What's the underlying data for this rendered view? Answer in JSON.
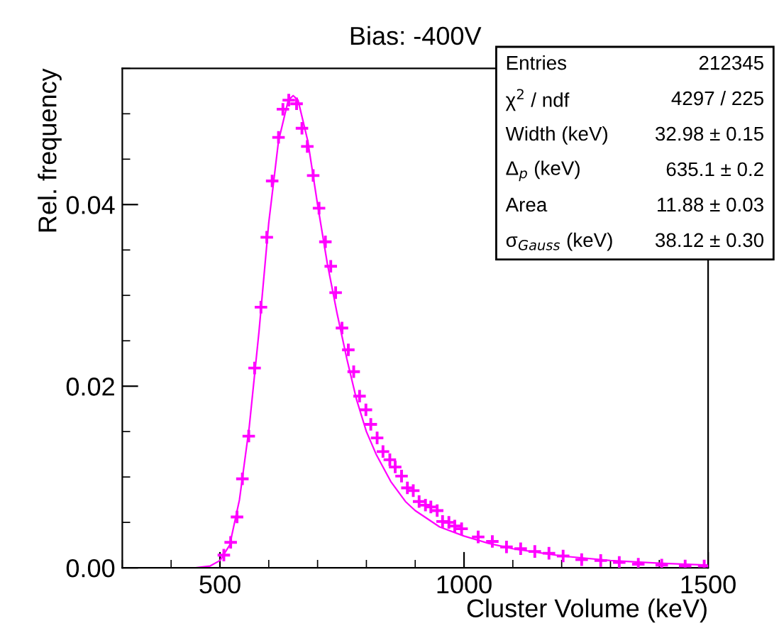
{
  "chart_data": {
    "type": "scatter",
    "title": "Bias: -400V",
    "xlabel": "Cluster Volume (keV)",
    "ylabel": "Rel. frequency",
    "xlim": [
      300,
      1500
    ],
    "xticks": [
      500,
      1000,
      1500
    ],
    "ylim": [
      0,
      0.055
    ],
    "yticks": [
      {
        "value": 0,
        "label": "0.00"
      },
      {
        "value": 0.02,
        "label": "0.02"
      },
      {
        "value": 0.04,
        "label": "0.04"
      }
    ],
    "grid": false,
    "annotations": [
      "Entries",
      "212345",
      "χ$^{2}$ / ndf",
      "4297 / 225",
      "Width (keV)",
      "32.98 ± 0.15",
      "Δ$_{p}$ (keV)",
      "635.1 ± 0.2",
      "Area",
      "11.88 ± 0.03",
      "σ$_{Gauss}$ (keV)",
      "38.12 ± 0.30"
    ],
    "series": [
      {
        "color": "#ff00ff",
        "marker": "cross",
        "x": [
          508,
          522,
          535,
          546,
          559,
          571,
          584,
          596,
          607,
          620,
          629,
          641,
          657,
          668,
          679,
          691,
          703,
          716,
          727,
          737,
          750,
          763,
          774,
          786,
          799,
          809,
          822,
          834,
          848,
          859,
          872,
          884,
          896,
          908,
          921,
          932,
          945,
          956,
          969,
          981,
          995,
          1029,
          1058,
          1087,
          1116,
          1145,
          1174,
          1203,
          1241,
          1280,
          1318,
          1357,
          1405,
          1453,
          1492
        ],
        "values": [
          0.0014,
          0.0028,
          0.0056,
          0.0098,
          0.0145,
          0.022,
          0.0287,
          0.0364,
          0.0426,
          0.0474,
          0.0505,
          0.0515,
          0.0511,
          0.0484,
          0.0464,
          0.0432,
          0.0396,
          0.0359,
          0.0332,
          0.0303,
          0.0264,
          0.024,
          0.0216,
          0.0189,
          0.0174,
          0.0158,
          0.0143,
          0.0128,
          0.0119,
          0.0111,
          0.0101,
          0.0088,
          0.0085,
          0.0073,
          0.0069,
          0.0067,
          0.0063,
          0.0051,
          0.005,
          0.0046,
          0.0043,
          0.0034,
          0.0029,
          0.0023,
          0.0021,
          0.0018,
          0.0016,
          0.0013,
          0.0009,
          0.0008,
          0.0006,
          0.0004,
          0.0003,
          0.0002,
          0.0002
        ]
      },
      {
        "type": "line",
        "color": "#ff00ff",
        "line_style": "solid",
        "x": [
          300,
          450,
          480,
          500,
          520,
          540,
          560,
          580,
          600,
          620,
          640,
          650,
          660,
          680,
          700,
          720,
          740,
          760,
          780,
          800,
          820,
          850,
          880,
          900,
          950,
          1000,
          1050,
          1100,
          1200,
          1300,
          1400,
          1500
        ],
        "values": [
          0,
          0,
          0.0002,
          0.0008,
          0.0025,
          0.0075,
          0.0155,
          0.026,
          0.038,
          0.047,
          0.0515,
          0.052,
          0.0515,
          0.047,
          0.04,
          0.0335,
          0.028,
          0.023,
          0.0185,
          0.015,
          0.0125,
          0.0095,
          0.0073,
          0.0063,
          0.0045,
          0.0035,
          0.0027,
          0.0021,
          0.0013,
          0.0008,
          0.0005,
          0.0003
        ]
      }
    ]
  }
}
